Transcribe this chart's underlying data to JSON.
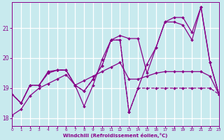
{
  "xlabel": "Windchill (Refroidissement éolien,°C)",
  "background_color": "#c8eaee",
  "grid_color": "#aacccc",
  "line_color": "#880088",
  "xlim": [
    0,
    23
  ],
  "ylim": [
    17.75,
    21.85
  ],
  "yticks": [
    18,
    19,
    20,
    21
  ],
  "xticks": [
    0,
    1,
    2,
    3,
    4,
    5,
    6,
    7,
    8,
    9,
    10,
    11,
    12,
    13,
    14,
    15,
    16,
    17,
    18,
    19,
    20,
    21,
    22,
    23
  ],
  "s1_x": [
    0,
    1,
    2,
    3,
    4,
    5,
    6,
    7,
    8,
    9,
    10,
    11,
    12,
    13,
    14,
    15,
    16,
    17,
    18,
    19,
    20,
    21,
    22,
    23
  ],
  "s1_y": [
    18.8,
    18.5,
    19.1,
    19.1,
    19.5,
    19.6,
    19.6,
    19.1,
    18.9,
    19.3,
    19.75,
    20.6,
    20.6,
    18.2,
    19.0,
    19.0,
    19.0,
    19.0,
    19.0,
    19.0,
    19.0,
    19.0,
    19.0,
    18.8
  ],
  "s2_x": [
    0,
    1,
    2,
    3,
    4,
    5,
    6,
    7,
    8,
    9,
    10,
    11,
    12,
    13,
    14,
    15,
    16,
    17,
    18,
    19,
    20,
    21,
    22,
    23
  ],
  "s2_y": [
    18.8,
    18.5,
    19.1,
    19.1,
    19.5,
    19.6,
    19.6,
    19.1,
    18.4,
    19.1,
    19.95,
    20.6,
    20.75,
    20.65,
    20.65,
    19.5,
    20.35,
    21.2,
    21.35,
    21.35,
    20.85,
    21.7,
    19.85,
    18.8
  ],
  "s3_x": [
    0,
    1,
    2,
    3,
    4,
    5,
    6,
    7,
    8,
    9,
    10,
    11,
    12,
    13,
    14,
    15,
    16,
    17,
    18,
    19,
    20,
    21,
    22,
    23
  ],
  "s3_y": [
    18.8,
    18.5,
    19.1,
    19.1,
    19.55,
    19.6,
    19.6,
    19.1,
    18.9,
    19.3,
    19.75,
    20.6,
    20.6,
    18.2,
    19.0,
    19.8,
    20.35,
    21.2,
    21.2,
    21.1,
    20.6,
    21.7,
    19.85,
    18.8
  ],
  "s4_x": [
    0,
    1,
    2,
    3,
    4,
    5,
    6,
    7,
    8,
    9,
    10,
    11,
    12,
    13,
    14,
    15,
    16,
    17,
    18,
    19,
    20,
    21,
    22,
    23
  ],
  "s4_y": [
    18.1,
    18.3,
    18.75,
    19.0,
    19.15,
    19.3,
    19.45,
    19.1,
    19.25,
    19.4,
    19.55,
    19.7,
    19.85,
    19.3,
    19.3,
    19.4,
    19.5,
    19.55,
    19.55,
    19.55,
    19.55,
    19.55,
    19.4,
    18.8
  ]
}
